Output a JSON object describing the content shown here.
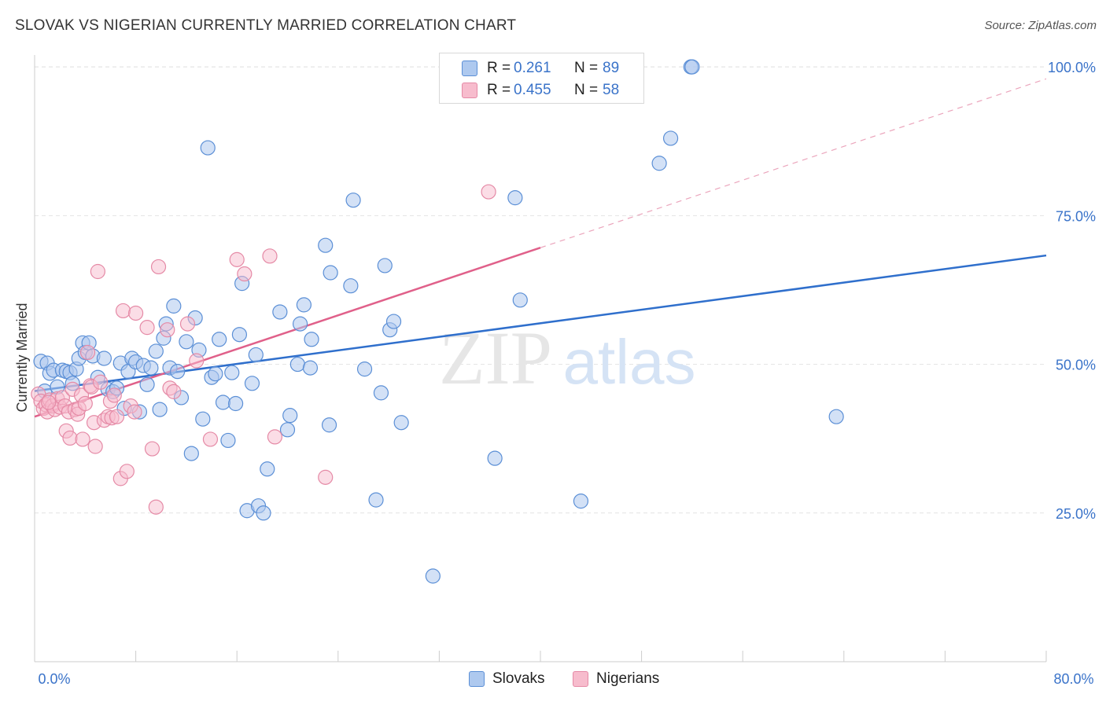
{
  "title": "SLOVAK VS NIGERIAN CURRENTLY MARRIED CORRELATION CHART",
  "source": "Source: ZipAtlas.com",
  "watermark": {
    "part1": "ZIP",
    "part2": "atlas"
  },
  "legend": {
    "rows": [
      {
        "r_label": "R =",
        "r_value": "0.261",
        "n_label": "N =",
        "n_value": "89"
      },
      {
        "r_label": "R =",
        "r_value": "0.455",
        "n_label": "N =",
        "n_value": "58"
      }
    ]
  },
  "bottom_legend": [
    {
      "label": "Slovaks"
    },
    {
      "label": "Nigerians"
    }
  ],
  "chart_data": {
    "type": "scatter",
    "title": "SLOVAK VS NIGERIAN CURRENTLY MARRIED CORRELATION CHART",
    "xlabel": "",
    "ylabel": "Currently Married",
    "xlim": [
      0,
      80
    ],
    "ylim": [
      0,
      102
    ],
    "x_tick_labels": [
      "0.0%",
      "80.0%"
    ],
    "y_ticks": [
      25,
      50,
      75,
      100
    ],
    "y_tick_labels": [
      "25.0%",
      "50.0%",
      "75.0%",
      "100.0%"
    ],
    "grid": true,
    "legend_position": "top-center",
    "colors": {
      "slovaks_fill": "#aec9ef",
      "slovaks_edge": "#5b8fd6",
      "slovaks_line": "#2f6fcc",
      "nigerians_fill": "#f7bccd",
      "nigerians_edge": "#e58aa6",
      "nigerians_line": "#e0608a",
      "tick_label": "#3a73c9",
      "grid": "#e4e4e4"
    },
    "series": [
      {
        "name": "Slovaks",
        "r": 0.261,
        "n": 89,
        "trend": {
          "x": [
            0,
            80
          ],
          "y": [
            45.5,
            68.3
          ],
          "dashed_extension": false
        },
        "points": [
          [
            0.5,
            50.5
          ],
          [
            0.8,
            45.5
          ],
          [
            1.0,
            50.2
          ],
          [
            1.2,
            48.5
          ],
          [
            1.5,
            49.0
          ],
          [
            1.8,
            46.2
          ],
          [
            2.2,
            49.0
          ],
          [
            2.5,
            48.8
          ],
          [
            2.8,
            48.6
          ],
          [
            3.0,
            46.8
          ],
          [
            3.3,
            49.2
          ],
          [
            3.5,
            51.0
          ],
          [
            3.8,
            53.6
          ],
          [
            4.0,
            52.0
          ],
          [
            4.3,
            53.6
          ],
          [
            4.6,
            51.4
          ],
          [
            5.0,
            47.8
          ],
          [
            5.5,
            51.0
          ],
          [
            5.8,
            45.8
          ],
          [
            6.2,
            45.4
          ],
          [
            6.5,
            46.0
          ],
          [
            6.8,
            50.2
          ],
          [
            7.1,
            42.6
          ],
          [
            7.4,
            48.8
          ],
          [
            7.7,
            51.0
          ],
          [
            8.0,
            50.4
          ],
          [
            8.3,
            42.0
          ],
          [
            8.6,
            49.8
          ],
          [
            8.9,
            46.6
          ],
          [
            9.2,
            49.4
          ],
          [
            9.6,
            52.2
          ],
          [
            9.9,
            42.4
          ],
          [
            10.2,
            54.4
          ],
          [
            10.4,
            56.8
          ],
          [
            10.7,
            49.4
          ],
          [
            11.0,
            59.8
          ],
          [
            11.3,
            48.8
          ],
          [
            11.6,
            44.4
          ],
          [
            12.0,
            53.8
          ],
          [
            12.4,
            35.0
          ],
          [
            12.7,
            57.8
          ],
          [
            13.0,
            52.4
          ],
          [
            13.3,
            40.8
          ],
          [
            13.7,
            86.4
          ],
          [
            14.0,
            47.8
          ],
          [
            14.3,
            48.4
          ],
          [
            14.6,
            54.2
          ],
          [
            14.9,
            43.6
          ],
          [
            15.3,
            37.2
          ],
          [
            15.6,
            48.6
          ],
          [
            15.9,
            43.4
          ],
          [
            16.2,
            55.0
          ],
          [
            16.4,
            63.6
          ],
          [
            16.8,
            25.4
          ],
          [
            17.2,
            46.8
          ],
          [
            17.5,
            51.6
          ],
          [
            17.7,
            26.2
          ],
          [
            18.1,
            25.0
          ],
          [
            18.4,
            32.4
          ],
          [
            19.4,
            58.8
          ],
          [
            20.0,
            39.0
          ],
          [
            20.2,
            41.4
          ],
          [
            20.8,
            50.0
          ],
          [
            21.0,
            56.8
          ],
          [
            21.3,
            60.0
          ],
          [
            21.8,
            49.4
          ],
          [
            21.9,
            54.2
          ],
          [
            23.0,
            70.0
          ],
          [
            23.3,
            39.8
          ],
          [
            23.4,
            65.4
          ],
          [
            25.0,
            63.2
          ],
          [
            25.2,
            77.6
          ],
          [
            26.1,
            49.2
          ],
          [
            27.0,
            27.2
          ],
          [
            27.4,
            45.2
          ],
          [
            27.7,
            66.6
          ],
          [
            28.1,
            55.8
          ],
          [
            28.4,
            57.2
          ],
          [
            29.0,
            40.2
          ],
          [
            31.5,
            14.4
          ],
          [
            36.4,
            34.2
          ],
          [
            38.0,
            78.0
          ],
          [
            38.4,
            60.8
          ],
          [
            43.2,
            27.0
          ],
          [
            49.4,
            83.8
          ],
          [
            50.3,
            88.0
          ],
          [
            51.9,
            100.0
          ],
          [
            63.4,
            41.2
          ],
          [
            52.0,
            100.0
          ]
        ]
      },
      {
        "name": "Nigerians",
        "r": 0.455,
        "n": 58,
        "trend": {
          "x": [
            0,
            40
          ],
          "y": [
            41.2,
            69.6
          ],
          "dashed_extension": true,
          "dashed_to": [
            80,
            98.0
          ]
        },
        "points": [
          [
            0.3,
            45.0
          ],
          [
            0.5,
            43.8
          ],
          [
            0.7,
            42.6
          ],
          [
            0.9,
            43.2
          ],
          [
            1.0,
            42.0
          ],
          [
            1.2,
            44.0
          ],
          [
            1.4,
            43.0
          ],
          [
            1.6,
            42.4
          ],
          [
            1.8,
            44.2
          ],
          [
            2.0,
            42.8
          ],
          [
            2.2,
            44.4
          ],
          [
            2.4,
            43.0
          ],
          [
            2.5,
            38.8
          ],
          [
            2.7,
            42.0
          ],
          [
            2.8,
            37.6
          ],
          [
            3.0,
            45.8
          ],
          [
            3.2,
            42.4
          ],
          [
            3.4,
            41.6
          ],
          [
            3.5,
            42.6
          ],
          [
            3.7,
            44.8
          ],
          [
            3.8,
            37.4
          ],
          [
            4.0,
            43.4
          ],
          [
            4.2,
            52.0
          ],
          [
            4.4,
            46.4
          ],
          [
            4.5,
            46.2
          ],
          [
            4.7,
            40.2
          ],
          [
            4.8,
            36.2
          ],
          [
            5.0,
            65.6
          ],
          [
            5.2,
            47.0
          ],
          [
            5.5,
            40.6
          ],
          [
            5.8,
            41.2
          ],
          [
            6.0,
            43.8
          ],
          [
            6.1,
            41.0
          ],
          [
            6.3,
            44.8
          ],
          [
            6.5,
            41.2
          ],
          [
            6.8,
            30.8
          ],
          [
            7.0,
            59.0
          ],
          [
            7.3,
            32.0
          ],
          [
            7.6,
            43.0
          ],
          [
            8.0,
            58.6
          ],
          [
            8.9,
            56.2
          ],
          [
            9.3,
            35.8
          ],
          [
            9.6,
            26.0
          ],
          [
            9.8,
            66.4
          ],
          [
            10.5,
            55.8
          ],
          [
            10.7,
            46.0
          ],
          [
            11.0,
            45.4
          ],
          [
            12.1,
            56.8
          ],
          [
            12.8,
            50.6
          ],
          [
            13.9,
            37.4
          ],
          [
            16.0,
            67.6
          ],
          [
            16.6,
            65.2
          ],
          [
            18.6,
            68.2
          ],
          [
            19.0,
            37.8
          ],
          [
            23.0,
            31.0
          ],
          [
            35.9,
            79.0
          ],
          [
            7.9,
            42.0
          ],
          [
            1.1,
            43.6
          ]
        ]
      }
    ]
  }
}
